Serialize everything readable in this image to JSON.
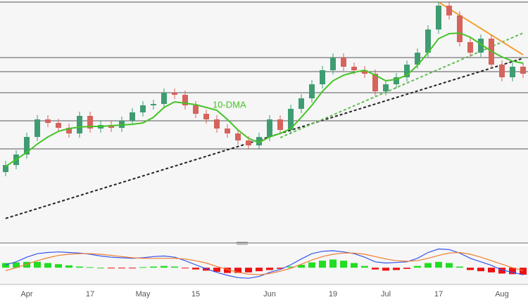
{
  "chart_data": [
    {
      "type": "candlestick",
      "categories": [
        null,
        null,
        "Apr",
        null,
        null,
        null,
        null,
        null,
        "17",
        null,
        null,
        null,
        null,
        "May",
        null,
        null,
        null,
        null,
        "15",
        null,
        null,
        null,
        null,
        null,
        null,
        "Jun",
        null,
        null,
        null,
        null,
        null,
        "19",
        null,
        null,
        null,
        null,
        "Jul",
        null,
        null,
        null,
        null,
        "17",
        null,
        null,
        null,
        null,
        null,
        "Aug",
        null,
        null
      ],
      "open": [
        100,
        110,
        125,
        150,
        175,
        170,
        163,
        155,
        180,
        162,
        167,
        163,
        173,
        185,
        195,
        197,
        213,
        210,
        195,
        183,
        175,
        162,
        155,
        145,
        138,
        150,
        175,
        160,
        190,
        205,
        225,
        245,
        263,
        250,
        245,
        240,
        215,
        225,
        235,
        253,
        270,
        303,
        337,
        323,
        285,
        270,
        290,
        253,
        235,
        250
      ],
      "high": [
        116,
        131,
        156,
        181,
        181,
        176,
        169,
        186,
        186,
        173,
        173,
        179,
        191,
        201,
        203,
        219,
        219,
        216,
        201,
        189,
        181,
        168,
        161,
        151,
        156,
        181,
        181,
        196,
        211,
        231,
        251,
        269,
        269,
        256,
        251,
        246,
        231,
        241,
        259,
        276,
        309,
        343,
        343,
        329,
        291,
        296,
        296,
        259,
        256,
        256
      ],
      "low": [
        94,
        104,
        119,
        144,
        164,
        157,
        149,
        149,
        156,
        156,
        157,
        157,
        167,
        179,
        189,
        191,
        204,
        189,
        177,
        169,
        156,
        149,
        139,
        132,
        132,
        144,
        154,
        154,
        184,
        199,
        219,
        239,
        244,
        239,
        234,
        209,
        209,
        219,
        229,
        247,
        264,
        297,
        317,
        279,
        264,
        264,
        247,
        229,
        229,
        234
      ],
      "close": [
        110,
        125,
        150,
        175,
        170,
        163,
        155,
        180,
        162,
        167,
        163,
        173,
        185,
        195,
        197,
        213,
        210,
        195,
        183,
        175,
        162,
        155,
        145,
        138,
        150,
        175,
        160,
        190,
        205,
        225,
        245,
        263,
        250,
        245,
        240,
        215,
        225,
        235,
        253,
        270,
        303,
        337,
        323,
        285,
        270,
        290,
        253,
        235,
        250,
        240
      ],
      "up_color": "#3f9c72",
      "down_color": "#d6635c",
      "ylim": [
        0,
        345
      ],
      "series": [
        {
          "name": "10-DMA",
          "color": "#44c424",
          "values": [
            108,
            118,
            128,
            140,
            150,
            158,
            162,
            164,
            165,
            165,
            166,
            167,
            168,
            170,
            178,
            192,
            200,
            198,
            196,
            192,
            188,
            175,
            160,
            148,
            142,
            150,
            155,
            162,
            178,
            195,
            215,
            230,
            238,
            242,
            245,
            238,
            230,
            232,
            238,
            252,
            270,
            290,
            297,
            298,
            292,
            282,
            272,
            264,
            258,
            255
          ]
        }
      ],
      "levels": {
        "values": [
          342,
          263,
          243,
          213,
          173,
          133
        ],
        "color": "#555555"
      },
      "trendlines": [
        {
          "from": [
            0,
            34
          ],
          "to": [
            49,
            262
          ],
          "color": "#222222",
          "style": "dashed"
        },
        {
          "from": [
            26,
            149
          ],
          "to": [
            49,
            298
          ],
          "color": "#66bb55",
          "style": "dashed"
        },
        {
          "from": [
            41,
            342
          ],
          "to": [
            49,
            267
          ],
          "color": "#f0a030",
          "style": "solid"
        }
      ]
    },
    {
      "type": "macd",
      "ylim": [
        -25,
        35
      ],
      "histogram": {
        "up_color": "#22dd22",
        "down_color": "#ee1111",
        "values": [
          8,
          9,
          10,
          10,
          8,
          6,
          4,
          2,
          1,
          0,
          -1,
          -1,
          -1,
          1,
          2,
          3,
          2,
          -1,
          -3,
          -5,
          -7,
          -9,
          -9,
          -8,
          -6,
          -4,
          -2,
          2,
          5,
          9,
          12,
          14,
          12,
          8,
          3,
          -3,
          -5,
          -4,
          -2,
          3,
          8,
          10,
          8,
          2,
          -4,
          -6,
          -8,
          -10,
          -11,
          -12
        ]
      },
      "series": [
        {
          "color": "#3355ee",
          "values": [
            5,
            10,
            18,
            24,
            26,
            27,
            26,
            25,
            23,
            20,
            18,
            17,
            16,
            17,
            19,
            20,
            18,
            12,
            5,
            -2,
            -8,
            -13,
            -17,
            -18,
            -15,
            -8,
            -3,
            5,
            15,
            24,
            28,
            29,
            27,
            24,
            18,
            10,
            8,
            9,
            10,
            16,
            26,
            32,
            31,
            25,
            16,
            10,
            4,
            -4,
            -8,
            -12
          ]
        },
        {
          "color": "#f07c30",
          "values": [
            -5,
            0,
            6,
            12,
            17,
            21,
            23,
            24,
            24,
            23,
            21,
            19,
            17,
            16,
            16,
            16,
            16,
            15,
            12,
            8,
            2,
            -3,
            -8,
            -11,
            -12,
            -10,
            -6,
            -1,
            6,
            13,
            19,
            23,
            25,
            25,
            23,
            19,
            15,
            12,
            11,
            12,
            16,
            21,
            25,
            26,
            23,
            18,
            12,
            6,
            0,
            -5
          ]
        }
      ]
    }
  ]
}
